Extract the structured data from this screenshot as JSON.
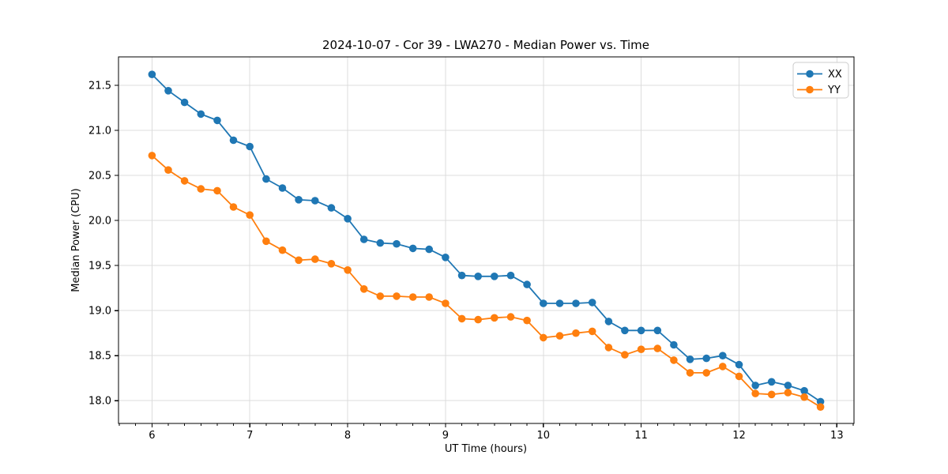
{
  "chart_data": {
    "type": "line",
    "title": "2024-10-07 - Cor 39 - LWA270 - Median Power vs. Time",
    "xlabel": "UT Time (hours)",
    "ylabel": "Median Power (CPU)",
    "xlim": [
      5.658,
      13.175
    ],
    "ylim": [
      17.748,
      21.815
    ],
    "xtick_values": [
      6,
      7,
      8,
      9,
      10,
      11,
      12,
      13
    ],
    "xtick_labels": [
      "6",
      "7",
      "8",
      "9",
      "10",
      "11",
      "12",
      "13"
    ],
    "ytick_values": [
      18.0,
      18.5,
      19.0,
      19.5,
      20.0,
      20.5,
      21.0,
      21.5
    ],
    "ytick_labels": [
      "18.0",
      "18.5",
      "19.0",
      "19.5",
      "20.0",
      "20.5",
      "21.0",
      "21.5"
    ],
    "x_minor_tick_step_hours": 0.1667,
    "grid": true,
    "grid_color": "#dcdcdc",
    "spine_color": "#000000",
    "background_color": "#ffffff",
    "legend_position": "upper right",
    "x": [
      6.0,
      6.167,
      6.333,
      6.5,
      6.667,
      6.833,
      7.0,
      7.167,
      7.333,
      7.5,
      7.667,
      7.833,
      8.0,
      8.167,
      8.333,
      8.5,
      8.667,
      8.833,
      9.0,
      9.167,
      9.333,
      9.5,
      9.667,
      9.833,
      10.0,
      10.167,
      10.333,
      10.5,
      10.667,
      10.833,
      11.0,
      11.167,
      11.333,
      11.5,
      11.667,
      11.833,
      12.0,
      12.167,
      12.333,
      12.5,
      12.667,
      12.833
    ],
    "series": [
      {
        "name": "XX",
        "color": "#1f77b4",
        "marker": "circle",
        "values": [
          21.62,
          21.44,
          21.31,
          21.18,
          21.11,
          20.89,
          20.82,
          20.46,
          20.36,
          20.23,
          20.22,
          20.14,
          20.02,
          19.79,
          19.75,
          19.74,
          19.69,
          19.68,
          19.59,
          19.39,
          19.38,
          19.38,
          19.39,
          19.29,
          19.08,
          19.08,
          19.08,
          19.09,
          18.88,
          18.78,
          18.78,
          18.78,
          18.62,
          18.46,
          18.47,
          18.5,
          18.4,
          18.17,
          18.21,
          18.17,
          18.11,
          17.99
        ]
      },
      {
        "name": "YY",
        "color": "#ff7f0e",
        "marker": "circle",
        "values": [
          20.72,
          20.56,
          20.44,
          20.35,
          20.33,
          20.15,
          20.06,
          19.77,
          19.67,
          19.56,
          19.57,
          19.52,
          19.45,
          19.24,
          19.16,
          19.16,
          19.15,
          19.15,
          19.08,
          18.91,
          18.9,
          18.92,
          18.93,
          18.89,
          18.7,
          18.72,
          18.75,
          18.77,
          18.59,
          18.51,
          18.57,
          18.58,
          18.45,
          18.31,
          18.31,
          18.38,
          18.27,
          18.08,
          18.07,
          18.09,
          18.04,
          17.93
        ]
      }
    ]
  }
}
